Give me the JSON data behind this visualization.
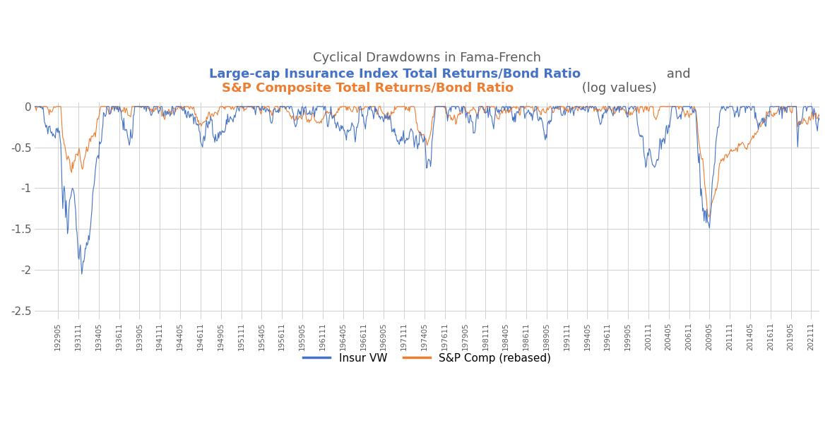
{
  "title_line1": "Cyclical Drawdowns in Fama-French",
  "title_line2_blue": "Large-cap Insurance Index Total Returns/Bond Ratio",
  "title_line2_gray": " and",
  "title_line3_orange": "S&P Composite Total Returns/Bond Ratio",
  "title_line3_gray": " (log values)",
  "title_color_blue": "#4472C4",
  "title_color_orange": "#ED7D31",
  "title_color_neutral": "#595959",
  "insur_color": "#4472C4",
  "sp_color": "#ED7D31",
  "ylim": [
    -2.6,
    0.05
  ],
  "yticks": [
    0,
    -0.5,
    -1,
    -1.5,
    -2,
    -2.5
  ],
  "legend_labels": [
    "Insur VW",
    "S&P Comp (rebased)"
  ],
  "background_color": "#FFFFFF",
  "grid_color": "#D0D0D0",
  "tick_dates": [
    "192905",
    "193111",
    "193405",
    "193611",
    "193905",
    "194111",
    "194405",
    "194611",
    "194905",
    "195111",
    "195405",
    "195611",
    "195905",
    "196111",
    "196405",
    "196611",
    "196905",
    "197111",
    "197405",
    "197611",
    "197905",
    "198111",
    "198405",
    "198611",
    "198905",
    "199111",
    "199405",
    "199611",
    "199905",
    "200111",
    "200405",
    "200611",
    "200905",
    "201111",
    "201405",
    "201611",
    "201905",
    "202111"
  ]
}
